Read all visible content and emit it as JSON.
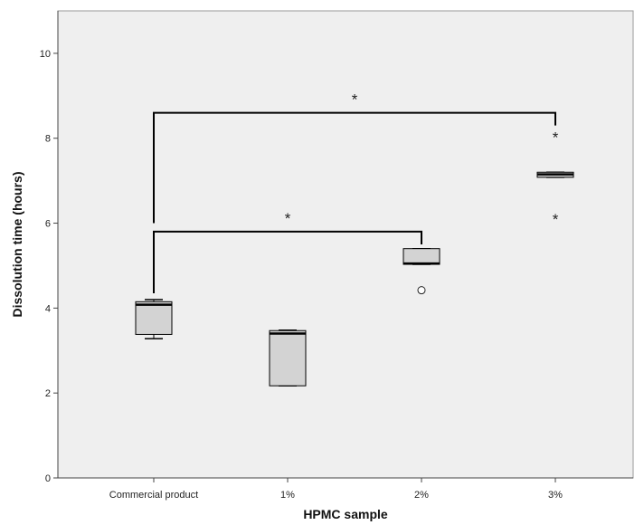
{
  "chart_data": {
    "type": "box",
    "xlabel": "HPMC sample",
    "ylabel": "Dissolution time (hours)",
    "ylim": [
      0,
      11
    ],
    "yticks": [
      0,
      2,
      4,
      6,
      8,
      10
    ],
    "categories": [
      "Commercial product",
      "1%",
      "2%",
      "3%"
    ],
    "boxes": [
      {
        "category": "Commercial product",
        "whisker_low": 3.28,
        "q1": 3.38,
        "median": 4.08,
        "q3": 4.15,
        "whisker_high": 4.2,
        "outliers": [],
        "extremes": []
      },
      {
        "category": "1%",
        "whisker_low": 2.17,
        "q1": 2.17,
        "median": 3.4,
        "q3": 3.47,
        "whisker_high": 3.48,
        "outliers": [],
        "extremes": []
      },
      {
        "category": "2%",
        "whisker_low": 5.03,
        "q1": 5.03,
        "median": 5.05,
        "q3": 5.4,
        "whisker_high": 5.4,
        "outliers": [
          4.42
        ],
        "extremes": []
      },
      {
        "category": "3%",
        "whisker_low": 7.08,
        "q1": 7.08,
        "median": 7.15,
        "q3": 7.2,
        "whisker_high": 7.2,
        "outliers": [],
        "extremes": [
          8.03,
          6.1
        ]
      }
    ],
    "significance": [
      {
        "from": "Commercial product",
        "to": "3%",
        "label": "*",
        "bracket_y": 8.6,
        "left_end": 6.0,
        "right_end": 8.3
      },
      {
        "from": "Commercial product",
        "to": "2%",
        "label": "*",
        "bracket_y": 5.8,
        "left_end": 4.35,
        "right_end": 5.5
      }
    ],
    "colors": {
      "plot_background": "#efefef",
      "box_fill": "#d3d3d3",
      "line": "#000000"
    },
    "grid": false,
    "legend": "none"
  }
}
